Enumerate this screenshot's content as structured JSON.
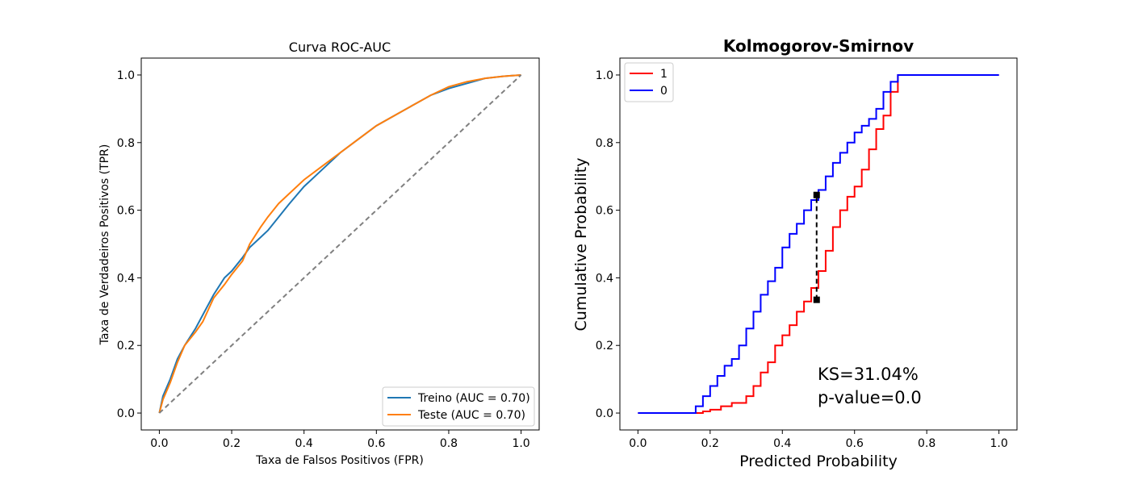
{
  "chart_data": [
    {
      "type": "line",
      "title": "Curva ROC-AUC",
      "xlabel": "Taxa de Falsos Positivos (FPR)",
      "ylabel": "Taxa de Verdadeiros Positivos (TPR)",
      "xlim": [
        -0.05,
        1.05
      ],
      "ylim": [
        -0.05,
        1.05
      ],
      "xticks": [
        0.0,
        0.2,
        0.4,
        0.6,
        0.8,
        1.0
      ],
      "yticks": [
        0.0,
        0.2,
        0.4,
        0.6,
        0.8,
        1.0
      ],
      "xtick_labels": [
        "0.0",
        "0.2",
        "0.4",
        "0.6",
        "0.8",
        "1.0"
      ],
      "ytick_labels": [
        "0.0",
        "0.2",
        "0.4",
        "0.6",
        "0.8",
        "1.0"
      ],
      "grid": false,
      "legend_position": "lower-right",
      "series": [
        {
          "name": "Treino (AUC = 0.70)",
          "color": "#1f77b4",
          "style": "solid",
          "x": [
            0,
            0.01,
            0.03,
            0.05,
            0.07,
            0.1,
            0.12,
            0.15,
            0.18,
            0.2,
            0.23,
            0.25,
            0.28,
            0.3,
            0.33,
            0.36,
            0.4,
            0.45,
            0.5,
            0.55,
            0.6,
            0.65,
            0.7,
            0.75,
            0.8,
            0.85,
            0.9,
            0.95,
            1.0
          ],
          "y": [
            0,
            0.05,
            0.1,
            0.16,
            0.2,
            0.25,
            0.29,
            0.35,
            0.4,
            0.42,
            0.46,
            0.49,
            0.52,
            0.54,
            0.58,
            0.62,
            0.67,
            0.72,
            0.77,
            0.81,
            0.85,
            0.88,
            0.91,
            0.94,
            0.96,
            0.975,
            0.99,
            0.996,
            1.0
          ]
        },
        {
          "name": "Teste (AUC = 0.70)",
          "color": "#ff7f0e",
          "style": "solid",
          "x": [
            0,
            0.01,
            0.03,
            0.05,
            0.07,
            0.1,
            0.12,
            0.15,
            0.18,
            0.2,
            0.23,
            0.25,
            0.28,
            0.3,
            0.33,
            0.36,
            0.4,
            0.45,
            0.5,
            0.55,
            0.6,
            0.65,
            0.7,
            0.75,
            0.8,
            0.85,
            0.9,
            0.95,
            1.0
          ],
          "y": [
            0,
            0.04,
            0.09,
            0.15,
            0.2,
            0.24,
            0.27,
            0.34,
            0.38,
            0.41,
            0.45,
            0.5,
            0.55,
            0.58,
            0.62,
            0.65,
            0.69,
            0.73,
            0.77,
            0.81,
            0.85,
            0.88,
            0.91,
            0.94,
            0.965,
            0.98,
            0.99,
            0.996,
            1.0
          ]
        },
        {
          "name": "",
          "color": "#808080",
          "style": "dashed",
          "x": [
            0,
            1
          ],
          "y": [
            0,
            1
          ]
        }
      ]
    },
    {
      "type": "line",
      "title": "Kolmogorov-Smirnov",
      "xlabel": "Predicted Probability",
      "ylabel": "Cumulative Probability",
      "xlim": [
        -0.05,
        1.05
      ],
      "ylim": [
        -0.05,
        1.05
      ],
      "xticks": [
        0.0,
        0.2,
        0.4,
        0.6,
        0.8,
        1.0
      ],
      "yticks": [
        0.0,
        0.2,
        0.4,
        0.6,
        0.8,
        1.0
      ],
      "xtick_labels": [
        "0.0",
        "0.2",
        "0.4",
        "0.6",
        "0.8",
        "1.0"
      ],
      "ytick_labels": [
        "0.0",
        "0.2",
        "0.4",
        "0.6",
        "0.8",
        "1.0"
      ],
      "grid": false,
      "legend_position": "upper-left",
      "series": [
        {
          "name": "1",
          "color": "#ff0000",
          "style": "step",
          "x": [
            0,
            0.15,
            0.18,
            0.2,
            0.23,
            0.26,
            0.3,
            0.32,
            0.34,
            0.36,
            0.38,
            0.4,
            0.42,
            0.44,
            0.46,
            0.48,
            0.5,
            0.52,
            0.54,
            0.56,
            0.58,
            0.6,
            0.62,
            0.64,
            0.66,
            0.68,
            0.7,
            0.72,
            1.0
          ],
          "y": [
            0,
            0,
            0.005,
            0.01,
            0.02,
            0.03,
            0.05,
            0.08,
            0.12,
            0.15,
            0.2,
            0.23,
            0.26,
            0.3,
            0.33,
            0.37,
            0.42,
            0.48,
            0.55,
            0.6,
            0.64,
            0.67,
            0.72,
            0.78,
            0.84,
            0.88,
            0.95,
            1.0,
            1.0
          ]
        },
        {
          "name": "0",
          "color": "#0000ff",
          "style": "step",
          "x": [
            0,
            0.14,
            0.16,
            0.18,
            0.2,
            0.22,
            0.24,
            0.26,
            0.28,
            0.3,
            0.32,
            0.34,
            0.36,
            0.38,
            0.4,
            0.42,
            0.44,
            0.46,
            0.48,
            0.5,
            0.52,
            0.54,
            0.56,
            0.58,
            0.6,
            0.62,
            0.64,
            0.66,
            0.68,
            0.7,
            0.72,
            1.0
          ],
          "y": [
            0,
            0,
            0.02,
            0.05,
            0.08,
            0.11,
            0.14,
            0.16,
            0.2,
            0.25,
            0.3,
            0.35,
            0.39,
            0.43,
            0.49,
            0.53,
            0.56,
            0.6,
            0.63,
            0.66,
            0.7,
            0.74,
            0.77,
            0.8,
            0.83,
            0.85,
            0.87,
            0.9,
            0.95,
            0.98,
            1.0,
            1.0
          ]
        }
      ],
      "ks_marker": {
        "x": 0.495,
        "y_low": 0.335,
        "y_high": 0.645,
        "color": "#000000"
      },
      "annotations": [
        "KS=31.04%",
        "p-value=0.0"
      ]
    }
  ]
}
